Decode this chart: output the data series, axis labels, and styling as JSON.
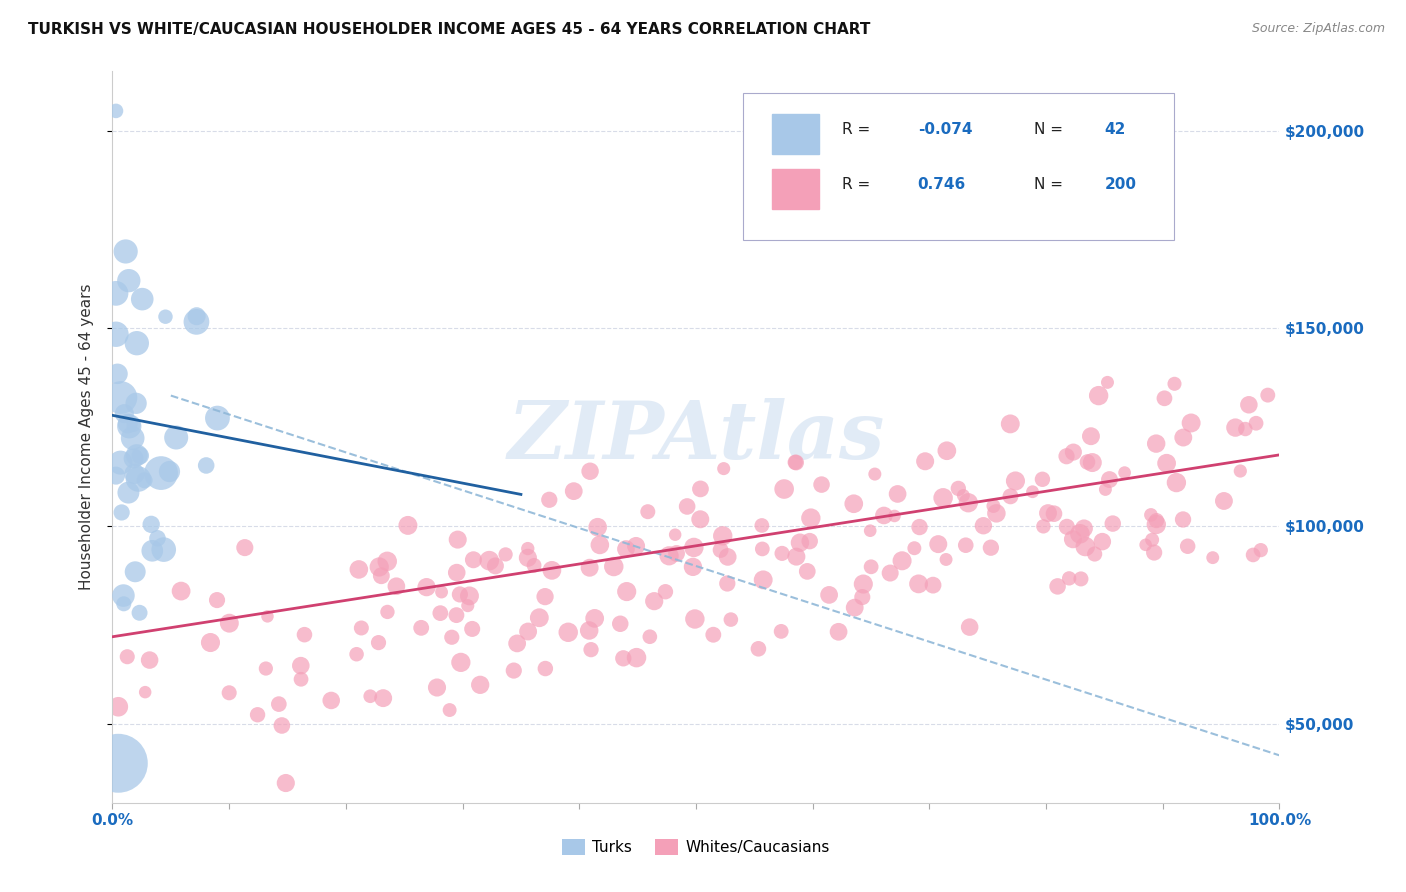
{
  "title": "TURKISH VS WHITE/CAUCASIAN HOUSEHOLDER INCOME AGES 45 - 64 YEARS CORRELATION CHART",
  "source": "Source: ZipAtlas.com",
  "ylabel": "Householder Income Ages 45 - 64 years",
  "R_turks": -0.074,
  "N_turks": 42,
  "R_whites": 0.746,
  "N_whites": 200,
  "legend_label_turks": "Turks",
  "legend_label_whites": "Whites/Caucasians",
  "color_turks": "#a8c8e8",
  "color_whites": "#f4a0b8",
  "color_turks_line": "#2060a0",
  "color_whites_line": "#d04070",
  "color_dashed": "#90b8d8",
  "xlim": [
    0.0,
    1.0
  ],
  "ylim": [
    30000,
    215000
  ],
  "yticks": [
    50000,
    100000,
    150000,
    200000
  ],
  "ytick_labels": [
    "$50,000",
    "$100,000",
    "$150,000",
    "$200,000"
  ],
  "xtick_labels_left": "0.0%",
  "xtick_labels_right": "100.0%",
  "watermark": "ZIPAtlas",
  "background_color": "#ffffff",
  "color_axis_label": "#1a6bbf",
  "color_text": "#333333",
  "color_grid": "#d8dce8"
}
